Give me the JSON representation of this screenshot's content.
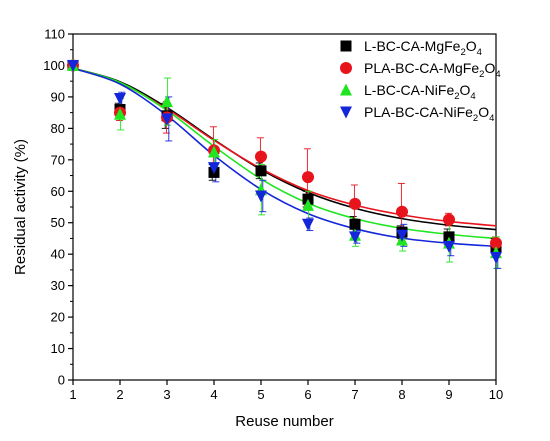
{
  "chart_data": {
    "type": "scatter",
    "xlabel": "Reuse number",
    "ylabel": "Residual activity (%)",
    "xlim": [
      1,
      10
    ],
    "ylim": [
      0,
      110
    ],
    "x_ticks": [
      1,
      2,
      3,
      4,
      5,
      6,
      7,
      8,
      9,
      10
    ],
    "y_ticks": [
      0,
      10,
      20,
      30,
      40,
      50,
      60,
      70,
      80,
      90,
      100,
      110
    ],
    "grid": false,
    "legend_position": "top-right",
    "x": [
      1,
      2,
      3,
      4,
      5,
      6,
      7,
      8,
      9,
      10
    ],
    "series": [
      {
        "name_main": "L-BC-CA-MgFe",
        "name_sub": "2",
        "name_main2": "O",
        "name_sub2": "4",
        "marker": "square",
        "color": "#000000",
        "values": [
          100,
          86,
          84,
          66,
          66.5,
          57.5,
          49.5,
          47,
          45.5,
          42
        ],
        "errors": [
          0,
          2,
          4,
          2.5,
          2.5,
          2.5,
          2.5,
          2,
          2.5,
          3
        ],
        "fit": [
          99.1,
          94.8,
          86.6,
          76.4,
          66.9,
          59.6,
          54.6,
          51.3,
          49.2,
          47.8
        ]
      },
      {
        "name_main": "PLA-BC-CA-MgFe",
        "name_sub": "2",
        "name_main2": "O",
        "name_sub2": "4",
        "marker": "circle",
        "color": "#e8141b",
        "values": [
          100,
          85,
          83.5,
          73,
          71,
          64.5,
          56,
          53.5,
          51,
          43.5
        ],
        "errors": [
          0,
          2.5,
          5,
          7.5,
          6,
          9,
          6,
          9,
          2,
          2
        ],
        "fit": [
          99.1,
          94.4,
          86.2,
          76.2,
          67.2,
          60.2,
          55.6,
          52.5,
          50.4,
          49
        ]
      },
      {
        "name_main": "L-BC-CA-NiFe",
        "name_sub": "2",
        "name_main2": "O",
        "name_sub2": "4",
        "marker": "triangle-up",
        "color": "#1fe61f",
        "values": [
          100,
          84.5,
          88.5,
          72.5,
          60.5,
          55.5,
          46,
          44.5,
          43.5,
          40.5
        ],
        "errors": [
          0,
          5,
          7.5,
          4,
          8,
          4.5,
          3.5,
          3.5,
          6,
          5
        ],
        "fit": [
          99.1,
          94.6,
          85.7,
          74.3,
          63.9,
          56.2,
          51.3,
          48.2,
          46.3,
          45
        ]
      },
      {
        "name_main": "PLA-BC-CA-NiFe",
        "name_sub": "2",
        "name_main2": "O",
        "name_sub2": "4",
        "marker": "triangle-down",
        "color": "#1426d9",
        "values": [
          100,
          89.5,
          83,
          67.5,
          58.5,
          49.5,
          45.5,
          46,
          42.5,
          39
        ],
        "errors": [
          0,
          2,
          7,
          4.5,
          5,
          2,
          2,
          3.5,
          3,
          3.5
        ],
        "fit": [
          99.1,
          94.1,
          84.1,
          71.4,
          60.6,
          52.9,
          48.1,
          45.1,
          43.5,
          42.5
        ]
      }
    ]
  }
}
